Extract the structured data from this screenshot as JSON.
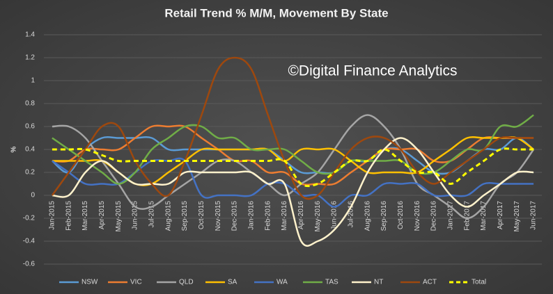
{
  "chart_data": {
    "type": "line",
    "title": "Retail Trend % M/M, Movement By State",
    "annotation": "©Digital Finance Analytics",
    "y_label": "%",
    "categories": [
      "Jan-2015",
      "Feb-2015",
      "Mar-2015",
      "Apr-2015",
      "May-2015",
      "Jun-2015",
      "Jul-2015",
      "Aug-2015",
      "Sep-2015",
      "Oct-2015",
      "Nov-2015",
      "Dec-2015",
      "Jan-2016",
      "Feb-2016",
      "Mar-2016",
      "Apr-2016",
      "May-2016",
      "Jun-2016",
      "Jul-2016",
      "Aug-2016",
      "Sep-2016",
      "Oct-2016",
      "Nov-2016",
      "Dec-2016",
      "Jan-2017",
      "Feb-2017",
      "Mar-2017",
      "Apr-2017",
      "May-2017",
      "Jun-2017"
    ],
    "ylim": [
      -0.6,
      1.4
    ],
    "yticks": [
      -0.6,
      -0.4,
      -0.2,
      0,
      0.2,
      0.4,
      0.6,
      0.8,
      1,
      1.2,
      1.4
    ],
    "grid": true,
    "legend": "bottom",
    "series": [
      {
        "name": "NSW",
        "color": "#5b9bd5",
        "values": [
          0.3,
          0.2,
          0.4,
          0.5,
          0.5,
          0.5,
          0.5,
          0.4,
          0.4,
          0.4,
          0.4,
          0.4,
          0.4,
          0.4,
          0.3,
          0.2,
          0.2,
          0.2,
          0.3,
          0.3,
          0.4,
          0.4,
          0.3,
          0.2,
          0.2,
          0.3,
          0.4,
          0.4,
          0.5,
          0.4
        ]
      },
      {
        "name": "VIC",
        "color": "#ed7d31",
        "values": [
          0.3,
          0.3,
          0.4,
          0.4,
          0.4,
          0.5,
          0.6,
          0.6,
          0.6,
          0.5,
          0.4,
          0.3,
          0.3,
          0.2,
          0.2,
          0.1,
          0.1,
          0.1,
          0.2,
          0.3,
          0.4,
          0.4,
          0.4,
          0.3,
          0.3,
          0.4,
          0.5,
          0.5,
          0.5,
          0.5
        ]
      },
      {
        "name": "QLD",
        "color": "#a5a5a5",
        "values": [
          0.6,
          0.6,
          0.5,
          0.3,
          0.1,
          -0.1,
          -0.1,
          0,
          0.1,
          0.2,
          0.3,
          0.3,
          0.2,
          0.1,
          0,
          0.1,
          0.2,
          0.4,
          0.6,
          0.7,
          0.6,
          0.4,
          0.1,
          0,
          -0.1,
          -0.2,
          -0.1,
          0.1,
          0.2,
          0.4
        ]
      },
      {
        "name": "SA",
        "color": "#ffc000",
        "values": [
          0.3,
          0.3,
          0.3,
          0.3,
          0.2,
          0.1,
          0.1,
          0.2,
          0.3,
          0.4,
          0.4,
          0.4,
          0.4,
          0.4,
          0.3,
          0.4,
          0.4,
          0.4,
          0.3,
          0.2,
          0.2,
          0.2,
          0.2,
          0.3,
          0.4,
          0.5,
          0.5,
          0.5,
          0.5,
          0.4
        ]
      },
      {
        "name": "WA",
        "color": "#4472c4",
        "values": [
          0.3,
          0.2,
          0.1,
          0.1,
          0.1,
          0.2,
          0.3,
          0.3,
          0.3,
          0,
          0,
          0,
          0,
          0.1,
          0.1,
          0,
          0,
          -0.1,
          0,
          0,
          0.1,
          0.1,
          0.1,
          0,
          0,
          0,
          0.1,
          0.1,
          0.1,
          0.1
        ]
      },
      {
        "name": "TAS",
        "color": "#70ad47",
        "values": [
          0.5,
          0.4,
          0.3,
          0.2,
          0.1,
          0.2,
          0.4,
          0.5,
          0.6,
          0.6,
          0.5,
          0.5,
          0.4,
          0.4,
          0.4,
          0.3,
          0.2,
          0.2,
          0.3,
          0.3,
          0.3,
          0.3,
          0.2,
          0.2,
          0.3,
          0.4,
          0.4,
          0.6,
          0.6,
          0.7
        ]
      },
      {
        "name": "NT",
        "color": "#fff2cc",
        "values": [
          0,
          0,
          0.2,
          0.3,
          0.2,
          0.1,
          0.1,
          0.1,
          0.2,
          0.2,
          0.2,
          0.2,
          0.2,
          0.1,
          0.1,
          -0.4,
          -0.4,
          -0.3,
          -0.1,
          0.2,
          0.4,
          0.5,
          0.4,
          0.2,
          0,
          -0.1,
          0,
          0.1,
          0.2,
          0.2
        ]
      },
      {
        "name": "ACT",
        "color": "#9e480e",
        "values": [
          0,
          0.2,
          0.4,
          0.6,
          0.6,
          0.3,
          0.1,
          0,
          0.3,
          0.7,
          1.1,
          1.2,
          1.1,
          0.7,
          0.3,
          0,
          0,
          0.2,
          0.4,
          0.5,
          0.5,
          0.4,
          0.2,
          0.1,
          0.2,
          0.3,
          0.4,
          0.5,
          0.5,
          0.5
        ]
      },
      {
        "name": "Total",
        "color": "#ffff00",
        "dashed": true,
        "values": [
          0.4,
          0.4,
          0.4,
          0.35,
          0.3,
          0.3,
          0.3,
          0.3,
          0.3,
          0.3,
          0.3,
          0.3,
          0.3,
          0.3,
          0.3,
          0.1,
          0.1,
          0.2,
          0.3,
          0.3,
          0.4,
          0.3,
          0.2,
          0.2,
          0.1,
          0.2,
          0.3,
          0.4,
          0.4,
          0.4
        ]
      }
    ]
  }
}
